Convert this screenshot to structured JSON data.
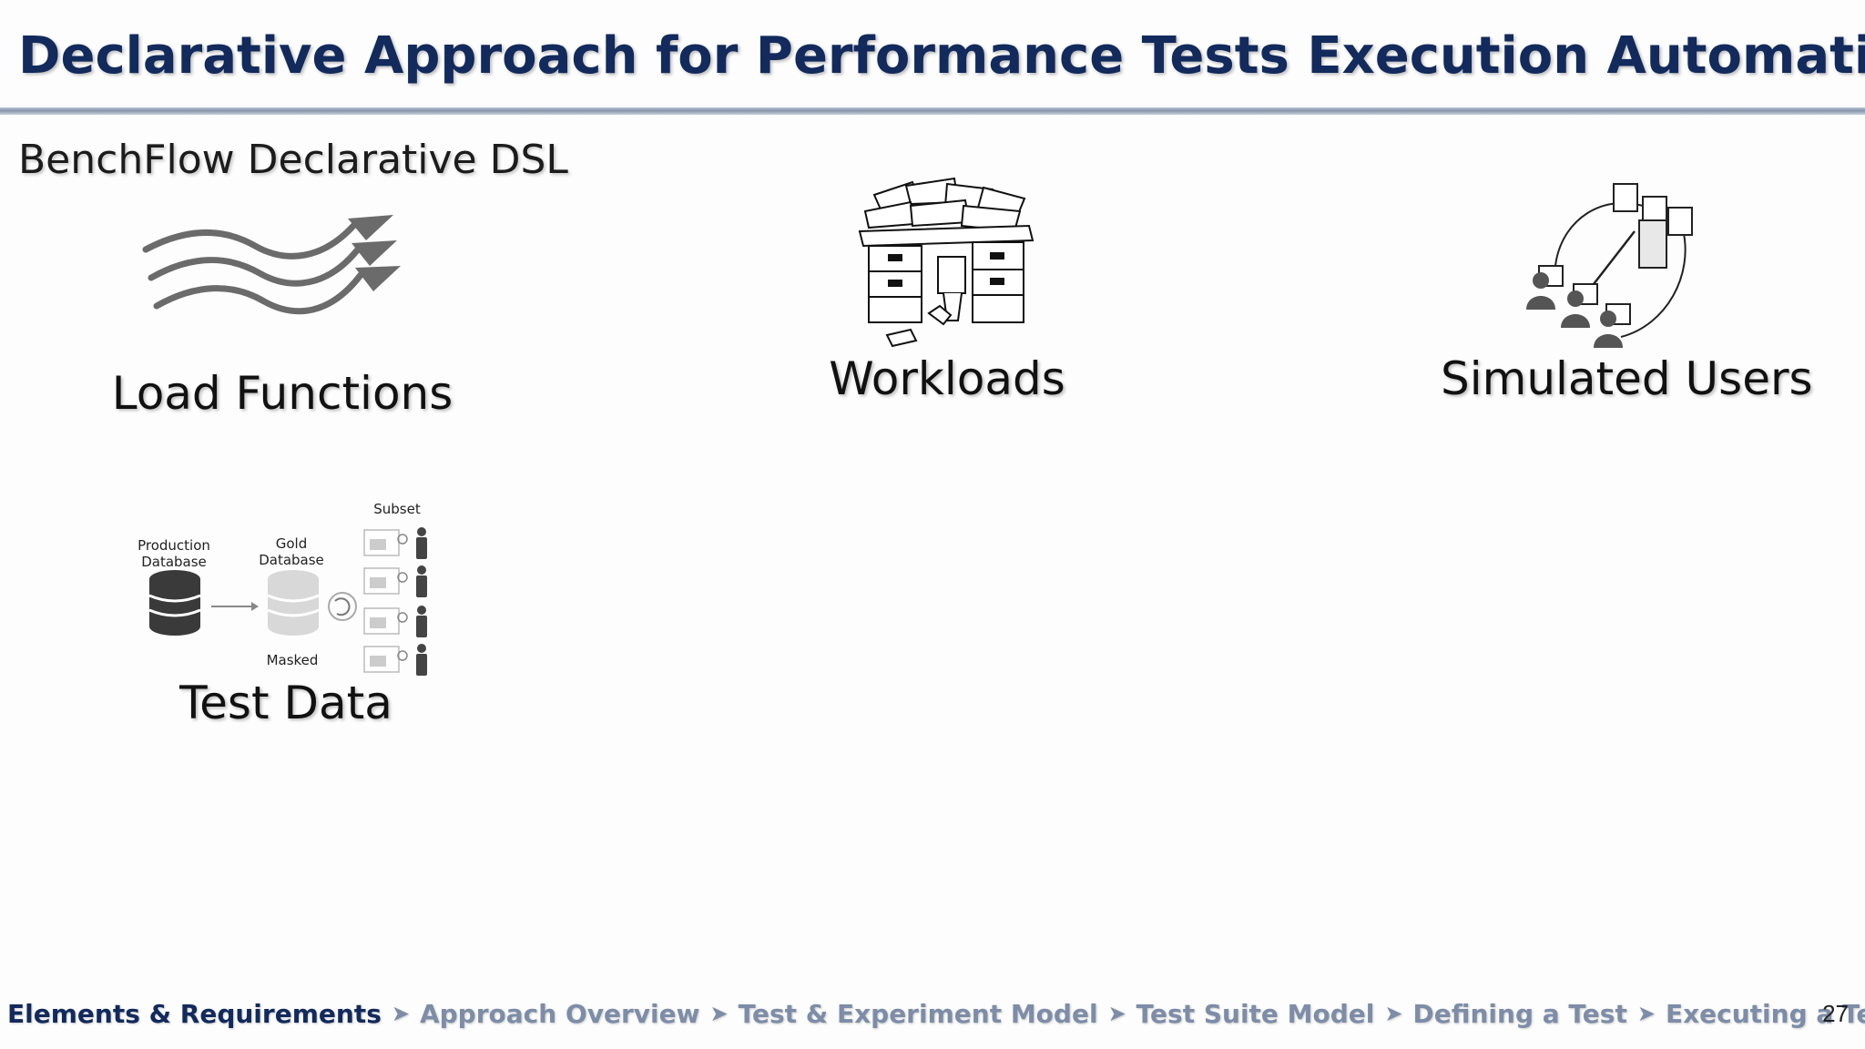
{
  "slide": {
    "title": "Declarative Approach for Performance Tests Execution Automation",
    "subtitle": "BenchFlow Declarative DSL",
    "page_number": "27"
  },
  "concepts": {
    "load_functions": {
      "label": "Load Functions",
      "icon": "wavy-arrows-icon"
    },
    "workloads": {
      "label": "Workloads",
      "icon": "messy-desk-icon"
    },
    "simulated_users": {
      "label": "Simulated Users",
      "icon": "users-server-icon"
    },
    "test_data": {
      "label": "Test Data",
      "icon": "database-subsetting-icon",
      "diagram": {
        "production": "Production Database",
        "gold": "Gold Database",
        "masked": "Masked",
        "subset": "Subset"
      }
    }
  },
  "breadcrumb": {
    "items": [
      "Elements & Requirements",
      "Approach Overview",
      "Test & Experiment Model",
      "Test Suite Model",
      "Defining a Test",
      "Executing a Test"
    ],
    "active_index": 0,
    "separator": "➤"
  },
  "colors": {
    "title": "#122a5c",
    "breadcrumb_active": "#122a5c",
    "breadcrumb_inactive": "#7d8da8"
  }
}
